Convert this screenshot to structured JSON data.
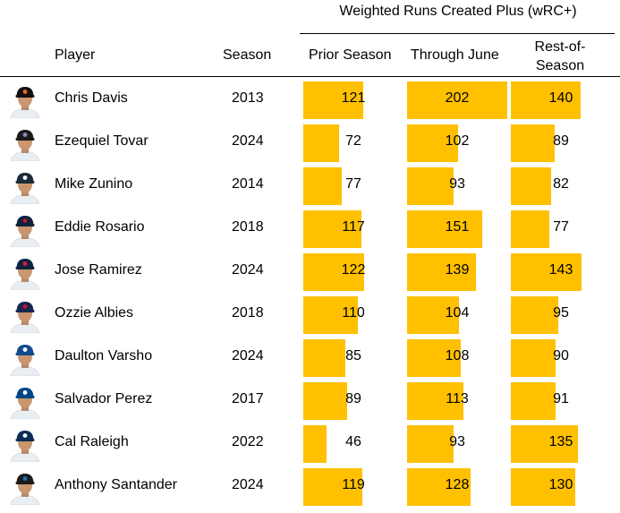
{
  "chart_data": {
    "type": "table",
    "group_title": "Weighted Runs Created Plus (wRC+)",
    "columns": {
      "player": "Player",
      "season": "Season",
      "prior": "Prior Season",
      "june": "Through June",
      "ros": "Rest-of-Season"
    },
    "bar_color": "#FFC000",
    "bar_scale_max": 202,
    "rows": [
      {
        "player": "Chris Davis",
        "season": "2013",
        "prior": 121,
        "june": 202,
        "ros": 140,
        "cap": "#111111",
        "cap_logo": "#E86A1F"
      },
      {
        "player": "Ezequiel Tovar",
        "season": "2024",
        "prior": 72,
        "june": 102,
        "ros": 89,
        "cap": "#1a1a1a",
        "cap_logo": "#8A8BB8"
      },
      {
        "player": "Mike Zunino",
        "season": "2014",
        "prior": 77,
        "june": 93,
        "ros": 82,
        "cap": "#1b2a3a",
        "cap_logo": "#ffffff"
      },
      {
        "player": "Eddie Rosario",
        "season": "2018",
        "prior": 117,
        "june": 151,
        "ros": 77,
        "cap": "#0C2340",
        "cap_logo": "#C8102E"
      },
      {
        "player": "Jose Ramirez",
        "season": "2024",
        "prior": 122,
        "june": 139,
        "ros": 143,
        "cap": "#0C2340",
        "cap_logo": "#E31937"
      },
      {
        "player": "Ozzie Albies",
        "season": "2018",
        "prior": 110,
        "june": 104,
        "ros": 95,
        "cap": "#13274F",
        "cap_logo": "#CE1141"
      },
      {
        "player": "Daulton Varsho",
        "season": "2024",
        "prior": 85,
        "june": 108,
        "ros": 90,
        "cap": "#134A8E",
        "cap_logo": "#ffffff"
      },
      {
        "player": "Salvador Perez",
        "season": "2017",
        "prior": 89,
        "june": 113,
        "ros": 91,
        "cap": "#004687",
        "cap_logo": "#ffffff"
      },
      {
        "player": "Cal Raleigh",
        "season": "2022",
        "prior": 46,
        "june": 93,
        "ros": 135,
        "cap": "#0C2C56",
        "cap_logo": "#ffffff"
      },
      {
        "player": "Anthony Santander",
        "season": "2024",
        "prior": 119,
        "june": 128,
        "ros": 130,
        "cap": "#1a1a1a",
        "cap_logo": "#1D6FB8"
      }
    ]
  }
}
